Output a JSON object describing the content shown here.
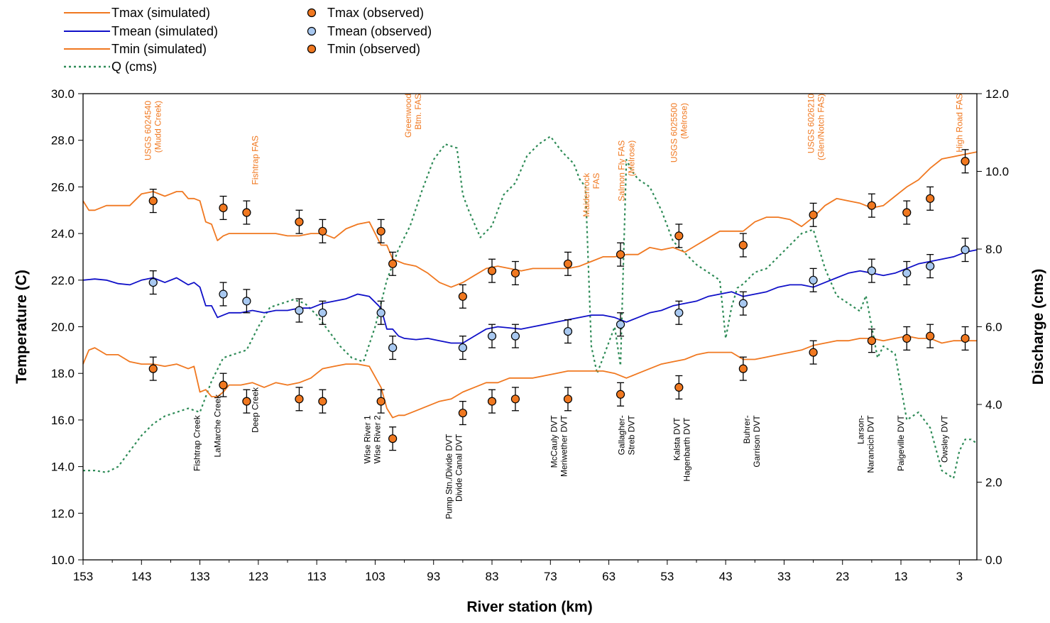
{
  "chart_data": {
    "type": "line",
    "xlabel": "River station (km)",
    "ylabel": "Temperature (C)",
    "y2label": "Discharge (cms)",
    "xlim": [
      153,
      0
    ],
    "ylim": [
      10,
      30
    ],
    "y2lim": [
      0,
      12
    ],
    "x_ticks": [
      153,
      143,
      133,
      123,
      113,
      103,
      93,
      83,
      73,
      63,
      53,
      43,
      33,
      23,
      13,
      3
    ],
    "y_ticks": [
      "10.0",
      "12.0",
      "14.0",
      "16.0",
      "18.0",
      "20.0",
      "22.0",
      "24.0",
      "26.0",
      "28.0",
      "30.0"
    ],
    "y2_ticks": [
      "0.0",
      "2.0",
      "4.0",
      "6.0",
      "8.0",
      "10.0",
      "12.0"
    ],
    "grid": false,
    "legend_position": "top-left",
    "colors": {
      "orange": "#F07820",
      "blue": "#1010C8",
      "green": "#2E8B57",
      "marker_blue": "#A8C8F0"
    },
    "series": [
      {
        "name": "Tmax (simulated)",
        "kind": "line",
        "color": "#F07820",
        "x": [
          153,
          152,
          151,
          149,
          147,
          145,
          143,
          141,
          139,
          138,
          137,
          136,
          135,
          134,
          133,
          132,
          131,
          130,
          129,
          128,
          127,
          126,
          125,
          124,
          122,
          120,
          118,
          116,
          114,
          112,
          110,
          108,
          106,
          104,
          102,
          101,
          100,
          99,
          98,
          96,
          94,
          92,
          90,
          88,
          86,
          84,
          82,
          80,
          78,
          76,
          74,
          72,
          70,
          68,
          66,
          64,
          62,
          60,
          58,
          56,
          54,
          52,
          50,
          48,
          46,
          44,
          42,
          40,
          38,
          36,
          34,
          32,
          30,
          28,
          26,
          24,
          22,
          20,
          18,
          16,
          14,
          12,
          10,
          8,
          6,
          4,
          2,
          0
        ],
        "y": [
          25.4,
          25.0,
          25.0,
          25.2,
          25.2,
          25.2,
          25.7,
          25.8,
          25.6,
          25.7,
          25.8,
          25.8,
          25.5,
          25.5,
          25.4,
          24.5,
          24.4,
          23.7,
          23.9,
          24.0,
          24.0,
          24.0,
          24.0,
          24.0,
          24.0,
          24.0,
          23.9,
          23.9,
          24.0,
          24.0,
          23.8,
          24.2,
          24.4,
          24.5,
          23.5,
          23.5,
          22.9,
          22.8,
          22.7,
          22.6,
          22.3,
          21.9,
          21.7,
          21.9,
          22.2,
          22.5,
          22.6,
          22.5,
          22.4,
          22.5,
          22.5,
          22.5,
          22.5,
          22.6,
          22.8,
          23.0,
          23.0,
          23.1,
          23.1,
          23.4,
          23.3,
          23.4,
          23.2,
          23.5,
          23.8,
          24.1,
          24.1,
          24.1,
          24.5,
          24.7,
          24.7,
          24.6,
          24.3,
          24.7,
          25.2,
          25.5,
          25.4,
          25.3,
          25.1,
          25.2,
          25.6,
          26.0,
          26.3,
          26.8,
          27.2,
          27.3,
          27.4,
          27.5
        ]
      },
      {
        "name": "Tmean (simulated)",
        "kind": "line",
        "color": "#1010C8",
        "x": [
          153,
          151,
          149,
          147,
          145,
          143,
          141,
          139,
          137,
          135,
          134,
          133,
          132,
          131,
          130,
          129,
          128,
          126,
          124,
          122,
          120,
          118,
          116,
          114,
          112,
          110,
          108,
          106,
          104,
          102,
          101,
          100,
          99,
          98,
          96,
          94,
          92,
          90,
          88,
          86,
          84,
          82,
          80,
          78,
          76,
          74,
          72,
          70,
          68,
          66,
          64,
          62,
          60,
          58,
          56,
          54,
          52,
          50,
          48,
          46,
          44,
          42,
          40,
          38,
          36,
          34,
          32,
          30,
          28,
          26,
          24,
          22,
          20,
          18,
          16,
          14,
          12,
          10,
          8,
          6,
          4,
          2,
          0
        ],
        "y": [
          22.0,
          22.05,
          22.0,
          21.85,
          21.8,
          22.0,
          22.1,
          21.9,
          22.1,
          21.8,
          21.9,
          21.7,
          20.9,
          20.9,
          20.4,
          20.5,
          20.6,
          20.6,
          20.7,
          20.6,
          20.7,
          20.7,
          20.8,
          20.8,
          21.0,
          21.1,
          21.2,
          21.4,
          21.3,
          20.8,
          19.9,
          19.9,
          19.6,
          19.5,
          19.45,
          19.5,
          19.4,
          19.3,
          19.3,
          19.6,
          19.9,
          20.0,
          19.95,
          19.9,
          20.0,
          20.1,
          20.2,
          20.3,
          20.4,
          20.5,
          20.5,
          20.4,
          20.2,
          20.4,
          20.6,
          20.7,
          20.9,
          21.0,
          21.1,
          21.3,
          21.4,
          21.5,
          21.3,
          21.4,
          21.5,
          21.7,
          21.8,
          21.8,
          21.7,
          21.9,
          22.1,
          22.3,
          22.4,
          22.3,
          22.2,
          22.3,
          22.5,
          22.7,
          22.8,
          22.9,
          23.0,
          23.2,
          23.3
        ]
      },
      {
        "name": "Tmin (simulated)",
        "kind": "line",
        "color": "#F07820",
        "x": [
          153,
          152,
          151,
          149,
          147,
          145,
          143,
          141,
          139,
          137,
          135,
          134,
          133,
          132,
          131,
          130,
          129,
          128,
          126,
          124,
          122,
          120,
          118,
          116,
          114,
          112,
          110,
          108,
          106,
          104,
          102,
          101,
          100,
          99,
          98,
          96,
          94,
          92,
          90,
          88,
          86,
          84,
          82,
          80,
          78,
          76,
          74,
          72,
          70,
          68,
          66,
          64,
          62,
          60,
          58,
          56,
          54,
          52,
          50,
          48,
          46,
          44,
          42,
          40,
          38,
          36,
          34,
          32,
          30,
          28,
          26,
          24,
          22,
          20,
          18,
          16,
          14,
          12,
          10,
          8,
          6,
          4,
          2,
          0
        ],
        "y": [
          18.4,
          19.0,
          19.1,
          18.8,
          18.8,
          18.5,
          18.4,
          18.4,
          18.3,
          18.4,
          18.2,
          18.3,
          17.2,
          17.3,
          17.0,
          17.0,
          17.2,
          17.5,
          17.5,
          17.6,
          17.4,
          17.6,
          17.5,
          17.6,
          17.8,
          18.2,
          18.3,
          18.4,
          18.4,
          18.3,
          17.4,
          16.5,
          16.1,
          16.2,
          16.2,
          16.4,
          16.6,
          16.8,
          16.9,
          17.2,
          17.4,
          17.6,
          17.6,
          17.8,
          17.8,
          17.8,
          17.9,
          18.0,
          18.1,
          18.1,
          18.1,
          18.1,
          18.0,
          17.8,
          18.0,
          18.2,
          18.4,
          18.5,
          18.6,
          18.8,
          18.9,
          18.9,
          18.9,
          18.6,
          18.6,
          18.7,
          18.8,
          18.9,
          19.0,
          19.2,
          19.3,
          19.4,
          19.4,
          19.5,
          19.5,
          19.4,
          19.5,
          19.6,
          19.5,
          19.5,
          19.3,
          19.4,
          19.4,
          19.4
        ]
      },
      {
        "name": "Q (cms)",
        "kind": "line",
        "axis": "y2",
        "dash": true,
        "color": "#2E8B57",
        "x": [
          153,
          151,
          149,
          147,
          145,
          143,
          141,
          139,
          137,
          135,
          133,
          131,
          129,
          127,
          125,
          123,
          121,
          119,
          117,
          115,
          113,
          111,
          109,
          107,
          105,
          103,
          101,
          99,
          97,
          95,
          93,
          91,
          89,
          88,
          87,
          85,
          83,
          81,
          79,
          77,
          75,
          73,
          71,
          69,
          68,
          67,
          66,
          65,
          64,
          63,
          62,
          61,
          60,
          59,
          58,
          56,
          54,
          52,
          50,
          48,
          46,
          44,
          43,
          42,
          41,
          40,
          38,
          36,
          34,
          32,
          30,
          28,
          26,
          24,
          22,
          20,
          19,
          18,
          17,
          16,
          14,
          12,
          10,
          8,
          6,
          4,
          3,
          2,
          1,
          0
        ],
        "y": [
          2.3,
          2.3,
          2.25,
          2.4,
          2.8,
          3.2,
          3.5,
          3.7,
          3.8,
          3.9,
          3.8,
          4.6,
          5.2,
          5.3,
          5.4,
          6.0,
          6.5,
          6.6,
          6.7,
          6.6,
          6.3,
          5.9,
          5.5,
          5.2,
          5.1,
          6.0,
          7.2,
          8.0,
          8.6,
          9.5,
          10.3,
          10.7,
          10.6,
          9.4,
          9.0,
          8.3,
          8.6,
          9.4,
          9.7,
          10.4,
          10.7,
          10.9,
          10.5,
          10.2,
          9.8,
          9.6,
          5.5,
          4.8,
          5.2,
          5.6,
          6.0,
          5.0,
          10.3,
          10.0,
          9.8,
          9.6,
          9.0,
          8.2,
          7.9,
          7.6,
          7.4,
          7.2,
          5.7,
          6.5,
          7.0,
          7.1,
          7.4,
          7.5,
          7.8,
          8.1,
          8.4,
          8.5,
          7.5,
          6.8,
          6.6,
          6.4,
          6.8,
          6.0,
          5.2,
          5.5,
          5.3,
          3.6,
          3.8,
          3.4,
          2.3,
          2.1,
          2.8,
          3.1,
          3.1,
          3.0
        ]
      },
      {
        "name": "Tmax (observed)",
        "kind": "points",
        "color": "#F07820",
        "error": 0.5,
        "x": [
          141,
          129,
          125,
          116,
          112,
          102,
          100,
          88,
          83,
          79,
          70,
          61,
          51,
          40,
          28,
          18,
          12,
          8,
          2
        ],
        "y": [
          25.4,
          25.1,
          24.9,
          24.5,
          24.1,
          24.1,
          22.7,
          21.3,
          22.4,
          22.3,
          22.7,
          23.1,
          23.9,
          23.5,
          24.8,
          25.2,
          24.9,
          25.5,
          27.1
        ]
      },
      {
        "name": "Tmean (observed)",
        "kind": "points",
        "color": "#A8C8F0",
        "error": 0.5,
        "x": [
          141,
          129,
          125,
          116,
          112,
          102,
          100,
          88,
          83,
          79,
          70,
          61,
          51,
          40,
          28,
          18,
          12,
          8,
          2
        ],
        "y": [
          21.9,
          21.4,
          21.1,
          20.7,
          20.6,
          20.6,
          19.1,
          19.1,
          19.6,
          19.6,
          19.8,
          20.1,
          20.6,
          21.0,
          22.0,
          22.4,
          22.3,
          22.6,
          23.3
        ]
      },
      {
        "name": "Tmin (observed)",
        "kind": "points",
        "color": "#F07820",
        "error": 0.5,
        "x": [
          141,
          129,
          125,
          116,
          112,
          102,
          100,
          88,
          83,
          79,
          70,
          61,
          51,
          40,
          28,
          18,
          12,
          8,
          2
        ],
        "y": [
          18.2,
          17.5,
          16.8,
          16.9,
          16.8,
          16.8,
          15.2,
          16.3,
          16.8,
          16.9,
          16.9,
          17.1,
          17.4,
          18.2,
          18.9,
          19.4,
          19.5,
          19.6,
          19.5
        ]
      }
    ],
    "annotations": [
      {
        "lines": [
          "USGS 6024540",
          "(Mudd Creek)"
        ],
        "x": 141,
        "y": 29.7,
        "color": "#F07820"
      },
      {
        "lines": [
          "Fishtrap FAS"
        ],
        "x": 123.5,
        "y": 28.2,
        "color": "#F07820"
      },
      {
        "lines": [
          "Greenwood",
          "Btm. FAS"
        ],
        "x": 96.5,
        "y": 30.0,
        "color": "#F07820"
      },
      {
        "lines": [
          "Maidenrock",
          "FAS"
        ],
        "x": 66,
        "y": 26.6,
        "color": "#F07820"
      },
      {
        "lines": [
          "Salmon Fly FAS",
          "(Melrose)"
        ],
        "x": 60,
        "y": 28.0,
        "color": "#F07820"
      },
      {
        "lines": [
          "USGS 6025500",
          "(Melrose)"
        ],
        "x": 51,
        "y": 29.6,
        "color": "#F07820"
      },
      {
        "lines": [
          "USGS 6026210",
          "(Glen/Notch FAS)"
        ],
        "x": 27.5,
        "y": 30.0,
        "color": "#F07820"
      },
      {
        "lines": [
          "High Road FAS"
        ],
        "x": 3,
        "y": 30.0,
        "color": "#F07820"
      },
      {
        "lines": [
          "Fishtrap Creek"
        ],
        "x": 133.5,
        "y": 16.2,
        "color": "#000000"
      },
      {
        "lines": [
          "LaMarche Creek"
        ],
        "x": 130,
        "y": 17.1,
        "color": "#000000"
      },
      {
        "lines": [
          "Deep Creek"
        ],
        "x": 123.5,
        "y": 17.4,
        "color": "#000000"
      },
      {
        "lines": [
          "Wise River 1",
          "Wise River 2"
        ],
        "x": 103.5,
        "y": 16.2,
        "color": "#000000"
      },
      {
        "lines": [
          "Pump Stn./Divide DVT",
          "Divide Canal DVT"
        ],
        "x": 89.5,
        "y": 15.4,
        "color": "#000000"
      },
      {
        "lines": [
          "McCauly DVT",
          "Meriwether DVT"
        ],
        "x": 71.5,
        "y": 16.2,
        "color": "#000000"
      },
      {
        "lines": [
          "Gallagher-",
          "Streb DVT"
        ],
        "x": 60,
        "y": 16.2,
        "color": "#000000"
      },
      {
        "lines": [
          "Kalsta DVT",
          "Hagenbarth DVT"
        ],
        "x": 50.5,
        "y": 16.1,
        "color": "#000000"
      },
      {
        "lines": [
          "Buhrer-",
          "Garrison DVT"
        ],
        "x": 38.5,
        "y": 16.2,
        "color": "#000000"
      },
      {
        "lines": [
          "Larson-",
          "Narancich DVT"
        ],
        "x": 19,
        "y": 16.2,
        "color": "#000000"
      },
      {
        "lines": [
          "Paigeville DVT"
        ],
        "x": 13,
        "y": 16.2,
        "color": "#000000"
      },
      {
        "lines": [
          "Owsley DVT"
        ],
        "x": 5.5,
        "y": 16.2,
        "color": "#000000"
      }
    ]
  }
}
